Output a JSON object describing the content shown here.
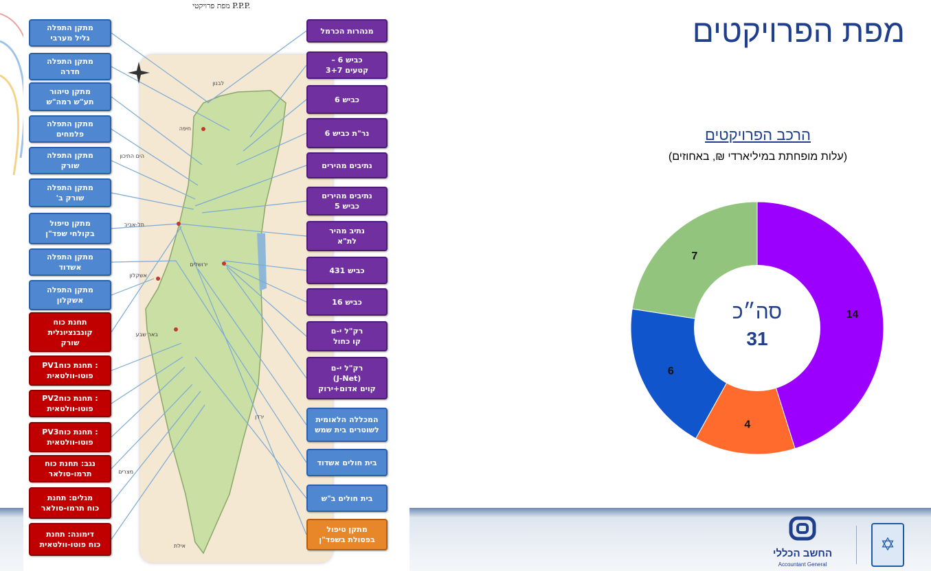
{
  "slide_title": "מפת הפרויקטים",
  "map": {
    "title": "מפת פרויקטי P.P.P.",
    "place_labels": [
      {
        "name": "lebanon",
        "text": "לבנון"
      },
      {
        "name": "sea",
        "text": "הים התיכון"
      },
      {
        "name": "egypt",
        "text": "מצרים"
      },
      {
        "name": "jordan",
        "text": "ירדן"
      },
      {
        "name": "haifa",
        "text": "חיפה"
      },
      {
        "name": "tel-aviv",
        "text": "תל-אביב"
      },
      {
        "name": "jerusalem",
        "text": "ירושלים"
      },
      {
        "name": "ashkelon",
        "text": "אשקלון"
      },
      {
        "name": "beer-sheva",
        "text": "באר שבע"
      },
      {
        "name": "eilat",
        "text": "אילת"
      }
    ],
    "left_boxes": [
      {
        "name": "galil-maaravi",
        "color": "blue",
        "text": "מתקן התפלה\nגליל מערבי"
      },
      {
        "name": "hadera",
        "color": "blue",
        "text": "מתקן התפלה\nחדרה"
      },
      {
        "name": "ramat-hasharon",
        "color": "blue",
        "text": "מתקן טיהור\nתע\"ש רמה\"ש"
      },
      {
        "name": "palmachim",
        "color": "blue",
        "text": "מתקן התפלה\nפלמחים"
      },
      {
        "name": "soreq",
        "color": "blue",
        "text": "מתקן התפלה\nשורק"
      },
      {
        "name": "soreq-b",
        "color": "blue",
        "text": "מתקן התפלה\nשורק ב'"
      },
      {
        "name": "kolchi-shafdan",
        "color": "blue",
        "text": "מתקן טיפול\nבקולחי שפד\"ן"
      },
      {
        "name": "ashdod-desal",
        "color": "blue",
        "text": "מתקן התפלה\nאשדוד"
      },
      {
        "name": "ashkelon-desal",
        "color": "blue",
        "text": "מתקן התפלה\nאשקלון"
      },
      {
        "name": "soreq-power",
        "color": "red",
        "text": "תחנת כוח\nקונבנציונלית\nשורק"
      },
      {
        "name": "pv1",
        "color": "red",
        "text": ": תחנת כוחPV1\nפוטו-וולטאית"
      },
      {
        "name": "pv2",
        "color": "red",
        "text": ": תחנת כוחPV2\nפוטו-וולטאית"
      },
      {
        "name": "pv3",
        "color": "red",
        "text": ": תחנת כוחPV3\nפוטו-וולטאית"
      },
      {
        "name": "negev-thermo",
        "color": "red",
        "text": "נגב: תחנת כוח\nתרמו-סולאר"
      },
      {
        "name": "megalim",
        "color": "red",
        "text": "מגלים: תחנת\nכוח תרמו-סולאר"
      },
      {
        "name": "dimona",
        "color": "red",
        "text": "דימונה: תחנת\nכוח פוטו-וולטאית"
      }
    ],
    "right_boxes": [
      {
        "name": "carmel-tunnels",
        "color": "purple",
        "text": "מנהרות הכרמל"
      },
      {
        "name": "road6-sections",
        "color": "purple",
        "text": "כביש 6 –\nקטעים 3+7"
      },
      {
        "name": "road6",
        "color": "purple",
        "text": "כביש 6"
      },
      {
        "name": "road6-north",
        "color": "purple",
        "text": "נר\"ת כביש 6"
      },
      {
        "name": "fast-lanes",
        "color": "purple",
        "text": "נתיבים מהירים"
      },
      {
        "name": "fast-lanes-road5",
        "color": "purple",
        "text": "נתיבים מהירים\nכביש 5"
      },
      {
        "name": "fast-lane-ta",
        "color": "purple",
        "text": "נתיב מהיר\nלת\"א"
      },
      {
        "name": "road431",
        "color": "purple",
        "text": "כביש 431"
      },
      {
        "name": "road16",
        "color": "purple",
        "text": "כביש 16"
      },
      {
        "name": "light-rail-red",
        "color": "purple",
        "text": "רק\"ל י-ם\nקו כחול"
      },
      {
        "name": "light-rail-jnet",
        "color": "purple",
        "text": "רק\"ל י-ם\n(J-Net)\nקוים אדום+ירוק"
      },
      {
        "name": "police-academy",
        "color": "blue",
        "text": "המכללה הלאומית\nלשוטרים בית שמש"
      },
      {
        "name": "ashdod-hospital",
        "color": "blue",
        "text": "בית חולים אשדוד"
      },
      {
        "name": "beer-sheva-hospital",
        "color": "blue",
        "text": "בית חולים ב\"ש"
      },
      {
        "name": "shafdan-sludge",
        "color": "orange",
        "text": "מתקן טיפול\nבפסולת בשפד\"ן"
      }
    ]
  },
  "colors": {
    "purple": "#9b00ff",
    "orange": "#ff6b2c",
    "blue": "#1155cc",
    "green": "#93c47d",
    "title": "#1f3e8c"
  },
  "chart_data": {
    "type": "pie",
    "variant": "donut",
    "title": "הרכב הפרויקטים",
    "subtitle": "(עלות מופחתת במיליארדי ₪, באחוזים)",
    "categories": [
      "",
      "",
      "",
      ""
    ],
    "values": [
      14,
      4,
      6,
      7
    ],
    "slice_colors": [
      "#9b00ff",
      "#ff6b2c",
      "#1155cc",
      "#93c47d"
    ],
    "total_label": "סה״כ",
    "total_value": "31",
    "legend": "none"
  },
  "logo": {
    "hebrew": "החשב הכללי",
    "english": "Accountant General"
  }
}
